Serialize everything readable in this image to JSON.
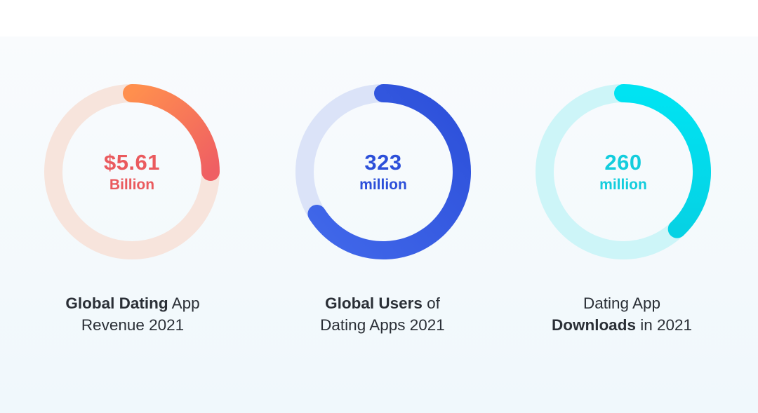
{
  "chart_data": [
    {
      "type": "donut",
      "value_label": "$5.61",
      "unit_label": "Billion",
      "caption": {
        "line1_bold": "Global Dating",
        "line1_rest": " App",
        "line2_bold": "",
        "line2_rest": "Revenue 2021"
      },
      "progress_fraction": 0.25,
      "colors": {
        "track": "#f7e4dc",
        "start": "#ff8f4e",
        "end": "#ef5f63",
        "text": "#ea5a5e"
      }
    },
    {
      "type": "donut",
      "value_label": "323",
      "unit_label": "million",
      "caption": {
        "line1_bold": "Global Users",
        "line1_rest": " of",
        "line2_bold": "",
        "line2_rest": "Dating Apps 2021"
      },
      "progress_fraction": 0.66,
      "colors": {
        "track": "#dbe3f8",
        "start": "#2c4fd9",
        "end": "#4168ea",
        "text": "#2c4fd9"
      }
    },
    {
      "type": "donut",
      "value_label": "260",
      "unit_label": "million",
      "caption": {
        "line1_bold": "",
        "line1_rest": "Dating App",
        "line2_bold": "Downloads",
        "line2_rest": " in 2021"
      },
      "progress_fraction": 0.38,
      "colors": {
        "track": "#cdf5f8",
        "start": "#00e3f2",
        "end": "#06d2e4",
        "text": "#13cddd"
      }
    }
  ]
}
